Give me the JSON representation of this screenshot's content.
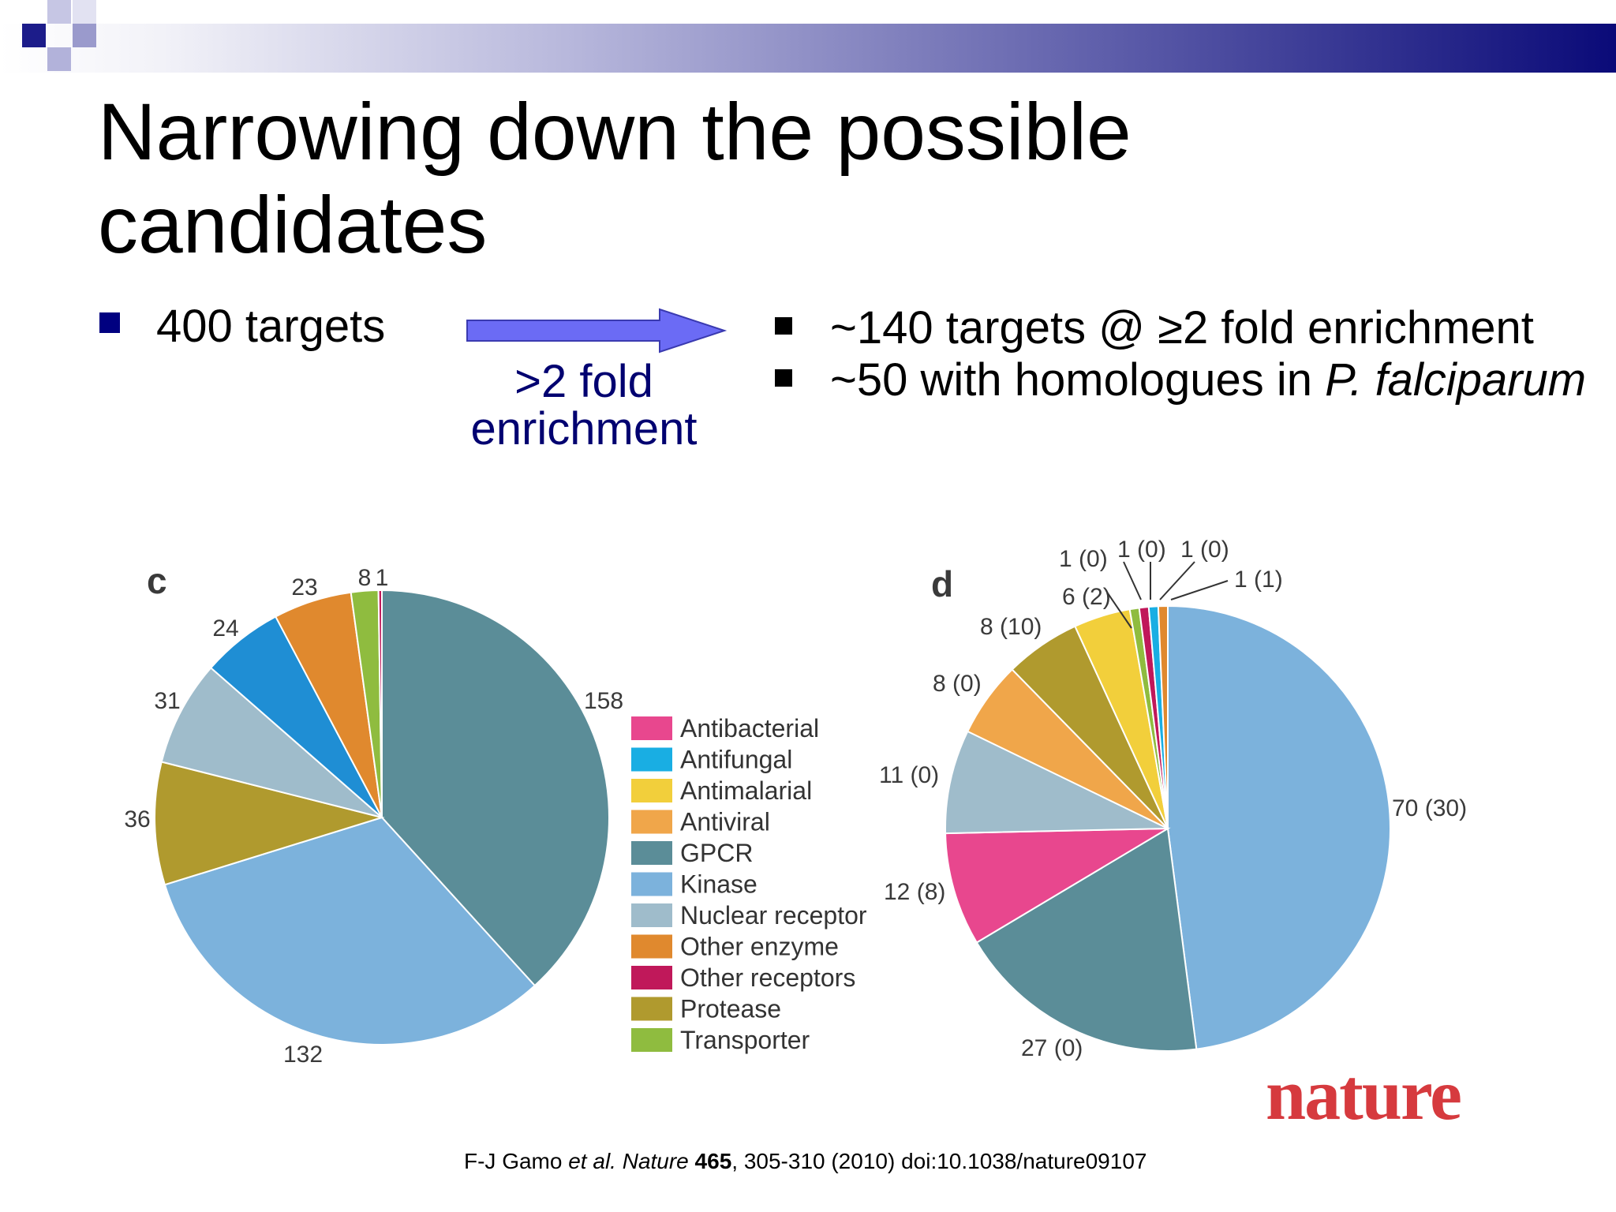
{
  "slide": {
    "title": "Narrowing down the possible candidates",
    "left_bullet": "400 targets",
    "arrow_label": ">2 fold enrichment",
    "right_bullets": [
      {
        "text": "~140 targets @ ≥2 fold enrichment"
      },
      {
        "text_prefix": "~50 with homologues in ",
        "text_italic": "P. falciparum"
      }
    ],
    "logo_text": "nature",
    "citation": {
      "authors": "F-J Gamo ",
      "etal": "et al.",
      "journal": " Nature ",
      "volume": "465",
      "rest": ", 305-310 (2010) doi:10.1038/nature09107"
    }
  },
  "colors": {
    "accent_square": "#000080",
    "arrow": "#6b6bf5",
    "arrow_label": "#000070",
    "logo": "#d63a3e"
  },
  "chart_data": [
    {
      "type": "pie",
      "panel_label": "c",
      "slices": [
        {
          "category": "GPCR",
          "value": 158,
          "label": "158",
          "color": "#5b8d98"
        },
        {
          "category": "Kinase",
          "value": 132,
          "label": "132",
          "color": "#7cb2dc"
        },
        {
          "category": "Protease",
          "value": 36,
          "label": "36",
          "color": "#b09a2e"
        },
        {
          "category": "Nuclear receptor",
          "value": 31,
          "label": "31",
          "color": "#9fbccb"
        },
        {
          "category": "Antifungal",
          "value": 24,
          "label": "24",
          "color": "#1f8ed4"
        },
        {
          "category": "Other enzyme",
          "value": 23,
          "label": "23",
          "color": "#e0892e"
        },
        {
          "category": "Transporter",
          "value": 8,
          "label": "8",
          "color": "#8fbc3f"
        },
        {
          "category": "Other receptors",
          "value": 1,
          "label": "1",
          "color": "#c0185a"
        }
      ]
    },
    {
      "type": "pie",
      "panel_label": "d",
      "slices": [
        {
          "category": "Kinase",
          "value": 70,
          "label": "70 (30)",
          "color": "#7cb2dc"
        },
        {
          "category": "GPCR",
          "value": 27,
          "label": "27 (0)",
          "color": "#5b8d98"
        },
        {
          "category": "Antibacterial",
          "value": 12,
          "label": "12 (8)",
          "color": "#e8478e"
        },
        {
          "category": "Nuclear receptor",
          "value": 11,
          "label": "11 (0)",
          "color": "#9fbccb"
        },
        {
          "category": "Antiviral",
          "value": 8,
          "label": "8 (0)",
          "color": "#f0a64a"
        },
        {
          "category": "Protease",
          "value": 8,
          "label": "8 (10)",
          "color": "#b09a2e"
        },
        {
          "category": "Antimalarial",
          "value": 6,
          "label": "6 (2)",
          "color": "#f2cf3b"
        },
        {
          "category": "Transporter",
          "value": 1,
          "label": "1 (0)",
          "color": "#8fbc3f"
        },
        {
          "category": "Other receptors",
          "value": 1,
          "label": "1 (0)",
          "color": "#c0185a"
        },
        {
          "category": "Antifungal",
          "value": 1,
          "label": "1 (0)",
          "color": "#19aee3"
        },
        {
          "category": "Other enzyme",
          "value": 1,
          "label": "1 (1)",
          "color": "#e0892e"
        }
      ]
    }
  ],
  "legend": [
    {
      "label": "Antibacterial",
      "color": "#e8478e"
    },
    {
      "label": "Antifungal",
      "color": "#19aee3"
    },
    {
      "label": "Antimalarial",
      "color": "#f2cf3b"
    },
    {
      "label": "Antiviral",
      "color": "#f0a64a"
    },
    {
      "label": "GPCR",
      "color": "#5b8d98"
    },
    {
      "label": "Kinase",
      "color": "#7cb2dc"
    },
    {
      "label": "Nuclear receptor",
      "color": "#9fbccb"
    },
    {
      "label": "Other enzyme",
      "color": "#e0892e"
    },
    {
      "label": "Other receptors",
      "color": "#c0185a"
    },
    {
      "label": "Protease",
      "color": "#b09a2e"
    },
    {
      "label": "Transporter",
      "color": "#8fbc3f"
    }
  ]
}
